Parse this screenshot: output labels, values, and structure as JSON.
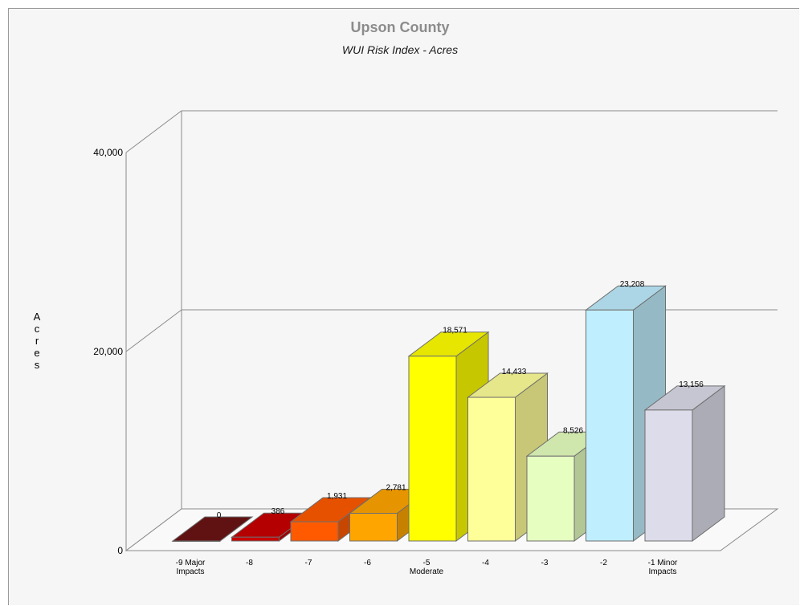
{
  "chart_data": {
    "type": "bar",
    "title": "Upson County",
    "subtitle": "WUI Risk Index - Acres",
    "ylabel": "Acres",
    "categories": [
      [
        "-9 Major",
        "Impacts"
      ],
      [
        "-8"
      ],
      [
        "-7"
      ],
      [
        "-6"
      ],
      [
        "-5",
        "Moderate"
      ],
      [
        "-4"
      ],
      [
        "-3"
      ],
      [
        "-2"
      ],
      [
        "-1 Minor",
        "Impacts"
      ]
    ],
    "values": [
      0,
      386,
      1931,
      2781,
      18571,
      14433,
      8526,
      23208,
      13156
    ],
    "value_labels": [
      "0",
      "386",
      "1,931",
      "2,781",
      "18,571",
      "14,433",
      "8,526",
      "23,208",
      "13,156"
    ],
    "colors": [
      "#6b1414",
      "#c80000",
      "#ff5a00",
      "#ffa500",
      "#ffff00",
      "#ffff99",
      "#e6ffc0",
      "#bfeefe",
      "#dcdcea"
    ],
    "yticks": [
      "0",
      "20,000",
      "40,000"
    ],
    "ylim": [
      0,
      40000
    ],
    "grid": true,
    "style": "3d"
  }
}
